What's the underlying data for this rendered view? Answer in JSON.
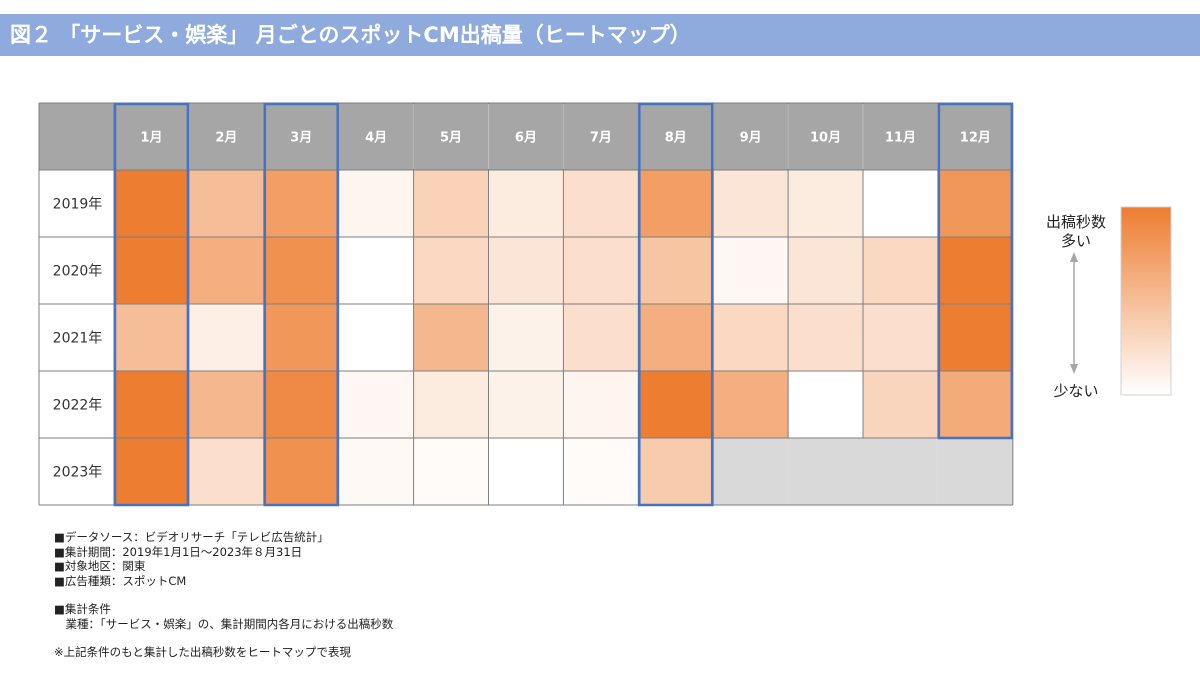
{
  "title": "図２ 「サービス・娯楽」 月ごとのスポットCM出稿量（ヒートマップ）",
  "chart_data": {
    "type": "heatmap",
    "columns": [
      "1月",
      "2月",
      "3月",
      "4月",
      "5月",
      "6月",
      "7月",
      "8月",
      "9月",
      "10月",
      "11月",
      "12月"
    ],
    "rows": [
      "2019年",
      "2020年",
      "2021年",
      "2022年",
      "2023年"
    ],
    "values": [
      [
        1.0,
        0.5,
        0.75,
        0.08,
        0.35,
        0.15,
        0.25,
        0.75,
        0.2,
        0.15,
        0.0,
        0.8
      ],
      [
        1.0,
        0.62,
        0.85,
        0.0,
        0.3,
        0.2,
        0.25,
        0.45,
        0.06,
        0.2,
        0.3,
        1.0
      ],
      [
        0.5,
        0.12,
        0.8,
        0.0,
        0.55,
        0.1,
        0.25,
        0.62,
        0.3,
        0.25,
        0.25,
        1.0
      ],
      [
        1.0,
        0.55,
        0.9,
        0.06,
        0.15,
        0.1,
        0.08,
        1.0,
        0.62,
        0.0,
        0.32,
        0.65
      ],
      [
        1.0,
        0.25,
        0.85,
        0.05,
        0.03,
        0.0,
        0.03,
        0.4,
        null,
        null,
        null,
        null
      ]
    ],
    "highlighted_columns": [
      "1月",
      "3月",
      "8月",
      "12月"
    ],
    "no_data_color": "#d9d9d9",
    "color_low": "#ffffff",
    "color_high": "#ed7d31",
    "header_color": "#a6a6a6",
    "highlight_border_color": "#4472c4",
    "legend": {
      "title": "出稿秒数",
      "high_label": "多い",
      "low_label": "少ない",
      "position": "right"
    }
  },
  "notes": [
    "■データソース：ビデオリサーチ「テレビ広告統計」",
    "■集計期間：2019年1月1日～2023年８月31日",
    "■対象地区：関東",
    "■広告種類：スポットCM",
    "",
    "■集計条件",
    "　業種：「サービス・娯楽」の、集計期間内各月における出稿秒数",
    "",
    "※上記条件のもと集計した出稿秒数をヒートマップで表現"
  ]
}
